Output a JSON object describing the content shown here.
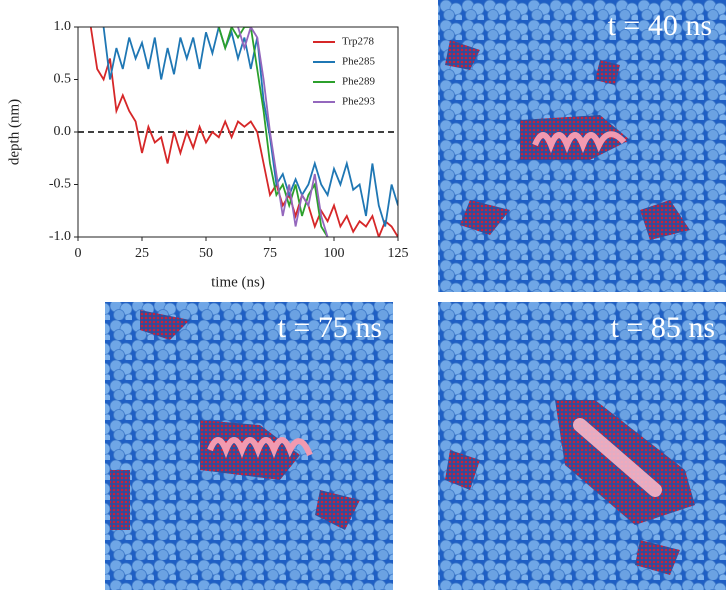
{
  "chart_data": {
    "type": "line",
    "xlabel": "time (ns)",
    "ylabel": "depth (nm)",
    "x": [
      0,
      2.5,
      5,
      7.5,
      10,
      12.5,
      15,
      17.5,
      20,
      22.5,
      25,
      27.5,
      30,
      32.5,
      35,
      37.5,
      40,
      42.5,
      45,
      47.5,
      50,
      52.5,
      55,
      57.5,
      60,
      62.5,
      65,
      67.5,
      70,
      72.5,
      75,
      77.5,
      80,
      82.5,
      85,
      87.5,
      90,
      92.5,
      95,
      97.5,
      100,
      102.5,
      105,
      107.5,
      110,
      112.5,
      115,
      117.5,
      120,
      122.5,
      125
    ],
    "series": [
      {
        "name": "Trp278",
        "color": "#d62728",
        "values": [
          null,
          null,
          1.0,
          0.6,
          0.5,
          0.7,
          0.2,
          0.35,
          0.2,
          0.1,
          -0.2,
          0.05,
          -0.1,
          -0.05,
          -0.3,
          0.0,
          -0.2,
          0.0,
          -0.15,
          0.05,
          -0.1,
          0.0,
          -0.05,
          0.1,
          -0.05,
          0.1,
          0.05,
          0.1,
          0.0,
          -0.3,
          -0.6,
          -0.5,
          -0.7,
          -0.6,
          -0.8,
          -0.6,
          -0.7,
          -0.9,
          -0.75,
          -0.85,
          -0.7,
          -0.9,
          -0.8,
          -0.95,
          -0.85,
          -0.9,
          -0.8,
          -1.0,
          -0.85,
          -0.9,
          -1.0
        ]
      },
      {
        "name": "Phe285",
        "color": "#1f77b4",
        "values": [
          null,
          null,
          null,
          null,
          1.0,
          0.5,
          0.8,
          0.6,
          0.9,
          0.7,
          0.85,
          0.6,
          0.9,
          0.5,
          0.8,
          0.55,
          0.9,
          0.7,
          0.9,
          0.6,
          0.95,
          0.75,
          1.0,
          0.8,
          0.95,
          0.7,
          0.9,
          0.6,
          0.9,
          0.3,
          -0.05,
          -0.5,
          -0.4,
          -0.6,
          -0.45,
          -0.6,
          -0.5,
          -0.3,
          -0.5,
          -0.6,
          -0.35,
          -0.5,
          -0.3,
          -0.55,
          -0.5,
          -0.8,
          -0.3,
          -0.7,
          -0.9,
          -0.5,
          -0.7
        ]
      },
      {
        "name": "Phe289",
        "color": "#2ca02c",
        "values": [
          null,
          null,
          null,
          null,
          null,
          null,
          null,
          null,
          null,
          null,
          null,
          null,
          null,
          null,
          null,
          null,
          null,
          null,
          null,
          null,
          null,
          null,
          1.0,
          0.8,
          1.0,
          0.9,
          1.0,
          1.0,
          0.6,
          0.2,
          -0.3,
          -0.6,
          -0.5,
          -0.7,
          -0.5,
          -0.8,
          -0.6,
          -0.5,
          -0.9,
          -1.0,
          null,
          null,
          null,
          null,
          null,
          null,
          null,
          null,
          null,
          null,
          null
        ]
      },
      {
        "name": "Phe293",
        "color": "#9467bd",
        "values": [
          null,
          null,
          null,
          null,
          null,
          null,
          null,
          null,
          null,
          null,
          null,
          null,
          null,
          null,
          null,
          null,
          null,
          null,
          null,
          null,
          null,
          null,
          null,
          null,
          null,
          1.0,
          0.8,
          1.0,
          0.9,
          0.5,
          0.0,
          -0.4,
          -0.8,
          -0.5,
          -0.9,
          -0.6,
          -0.7,
          -0.4,
          -0.8,
          -1.0,
          null,
          null,
          null,
          null,
          null,
          null,
          null,
          null,
          null,
          null,
          null
        ]
      }
    ],
    "xlim": [
      0,
      125
    ],
    "xticks": [
      0,
      25,
      50,
      75,
      100,
      125
    ],
    "ylim": [
      -1,
      1
    ],
    "yticks": [
      {
        "value": -1,
        "label": "-1.0"
      },
      {
        "value": -0.5,
        "label": "-0.5"
      },
      {
        "value": 0,
        "label": "0.0"
      },
      {
        "value": 0.5,
        "label": "0.5"
      },
      {
        "value": 1,
        "label": "1.0"
      }
    ],
    "hline": 0,
    "legend": "upper right"
  },
  "panels": [
    {
      "label": "t = 40 ns"
    },
    {
      "label": "t = 75 ns"
    },
    {
      "label": "t = 85 ns"
    }
  ]
}
